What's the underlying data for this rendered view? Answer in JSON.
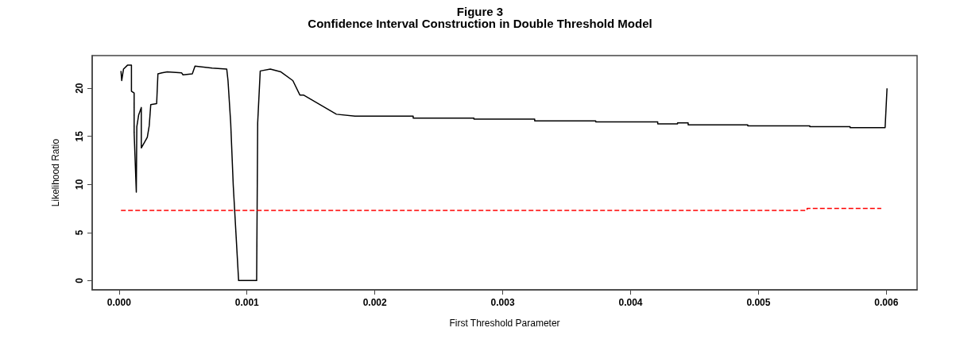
{
  "chart_data": {
    "type": "line",
    "title": "Figure 3",
    "subtitle": "Confidence Interval Construction in Double Threshold Model",
    "xlabel": "First Threshold Parameter",
    "ylabel": "Likelihood Ratio",
    "xlim": [
      -0.00021,
      0.00624
    ],
    "ylim": [
      -0.96,
      23.4
    ],
    "xticks": [
      {
        "value": 0,
        "label": "0.000"
      },
      {
        "value": 0.001,
        "label": "0.001"
      },
      {
        "value": 0.002,
        "label": "0.002"
      },
      {
        "value": 0.003,
        "label": "0.003"
      },
      {
        "value": 0.004,
        "label": "0.004"
      },
      {
        "value": 0.005,
        "label": "0.005"
      },
      {
        "value": 0.006,
        "label": "0.006"
      }
    ],
    "yticks": [
      0,
      5,
      10,
      15,
      20
    ],
    "grid": false,
    "marker": "none",
    "series": [
      {
        "color": "#000000",
        "line_style": "solid",
        "x": [
          1.5e-05,
          2.1e-05,
          3.5e-05,
          6.6e-05,
          9.7e-05,
          9.7e-05,
          0.000118,
          0.000118,
          0.000135,
          0.000139,
          0.000153,
          0.000174,
          0.000174,
          0.000221,
          0.000236,
          0.000248,
          0.000294,
          0.000304,
          0.000335,
          0.000377,
          0.00049,
          0.0005,
          0.000573,
          0.000594,
          0.000728,
          0.000842,
          0.000852,
          0.000873,
          0.000893,
          0.000935,
          0.001076,
          0.001084,
          0.001104,
          0.001183,
          0.001266,
          0.001359,
          0.001414,
          0.001442,
          0.0017,
          0.001845,
          0.0023,
          0.0023,
          0.002775,
          0.002775,
          0.00325,
          0.00325,
          0.003727,
          0.003727,
          0.004212,
          0.004212,
          0.004367,
          0.004367,
          0.00445,
          0.00445,
          0.004916,
          0.004916,
          0.005401,
          0.005401,
          0.005716,
          0.005716,
          0.00599,
          0.006005
        ],
        "values": [
          21.8,
          20.8,
          22.0,
          22.4,
          22.4,
          19.7,
          19.5,
          15.4,
          9.2,
          16.0,
          17.2,
          18.0,
          13.8,
          14.9,
          16.1,
          18.3,
          18.4,
          21.5,
          21.6,
          21.7,
          21.6,
          21.4,
          21.5,
          22.3,
          22.1,
          22.0,
          20.8,
          16.4,
          9.9,
          0,
          0,
          16.4,
          21.8,
          22.0,
          21.7,
          20.8,
          19.3,
          19.3,
          17.3,
          17.1,
          17.1,
          16.9,
          16.9,
          16.8,
          16.8,
          16.6,
          16.6,
          16.5,
          16.5,
          16.3,
          16.3,
          16.4,
          16.4,
          16.2,
          16.2,
          16.1,
          16.1,
          16.0,
          16.0,
          15.9,
          15.9,
          20.0
        ]
      },
      {
        "color": "#ff0000",
        "line_style": "dashed",
        "x": [
          1.5e-05,
          0.00538,
          0.00538,
          0.00596
        ],
        "values": [
          7.3,
          7.3,
          7.5,
          7.5
        ]
      }
    ]
  }
}
